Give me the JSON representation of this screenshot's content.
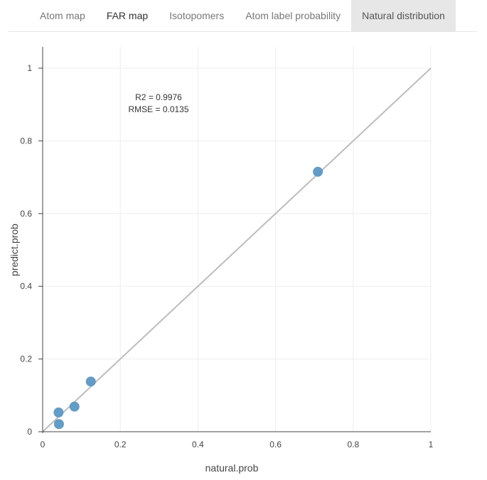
{
  "tabs": [
    {
      "label": "Atom map",
      "active": false,
      "dark": false
    },
    {
      "label": "FAR map",
      "active": false,
      "dark": true
    },
    {
      "label": "Isotopomers",
      "active": false,
      "dark": false
    },
    {
      "label": "Atom label probability",
      "active": false,
      "dark": false
    },
    {
      "label": "Natural distribution",
      "active": true,
      "dark": false
    }
  ],
  "annotation": {
    "line1": "R2 = 0.9976",
    "line2": "RMSE = 0.0135"
  },
  "chart_data": {
    "type": "scatter",
    "xlabel": "natural.prob",
    "ylabel": "predict.prob",
    "xlim": [
      0,
      1
    ],
    "ylim": [
      0,
      1
    ],
    "grid": true,
    "x_ticks": [
      0,
      0.2,
      0.4,
      0.6,
      0.8,
      1
    ],
    "y_ticks": [
      0,
      0.2,
      0.4,
      0.6,
      0.8,
      1
    ],
    "x_tick_labels": [
      "0",
      "0.2",
      "0.4",
      "0.6",
      "0.8",
      "1"
    ],
    "y_tick_labels": [
      "0",
      "0.2",
      "0.4",
      "0.6",
      "0.8",
      "1"
    ],
    "points": [
      {
        "x": 0.041,
        "y": 0.053
      },
      {
        "x": 0.042,
        "y": 0.021
      },
      {
        "x": 0.082,
        "y": 0.069
      },
      {
        "x": 0.124,
        "y": 0.138
      },
      {
        "x": 0.709,
        "y": 0.715
      }
    ],
    "reference_line": {
      "x": [
        0,
        1
      ],
      "y": [
        0,
        1
      ]
    },
    "colors": {
      "point": "#5b97c4",
      "reference_line": "#bdbdbd",
      "grid": "#eeeeee",
      "axis": "#444444"
    }
  }
}
